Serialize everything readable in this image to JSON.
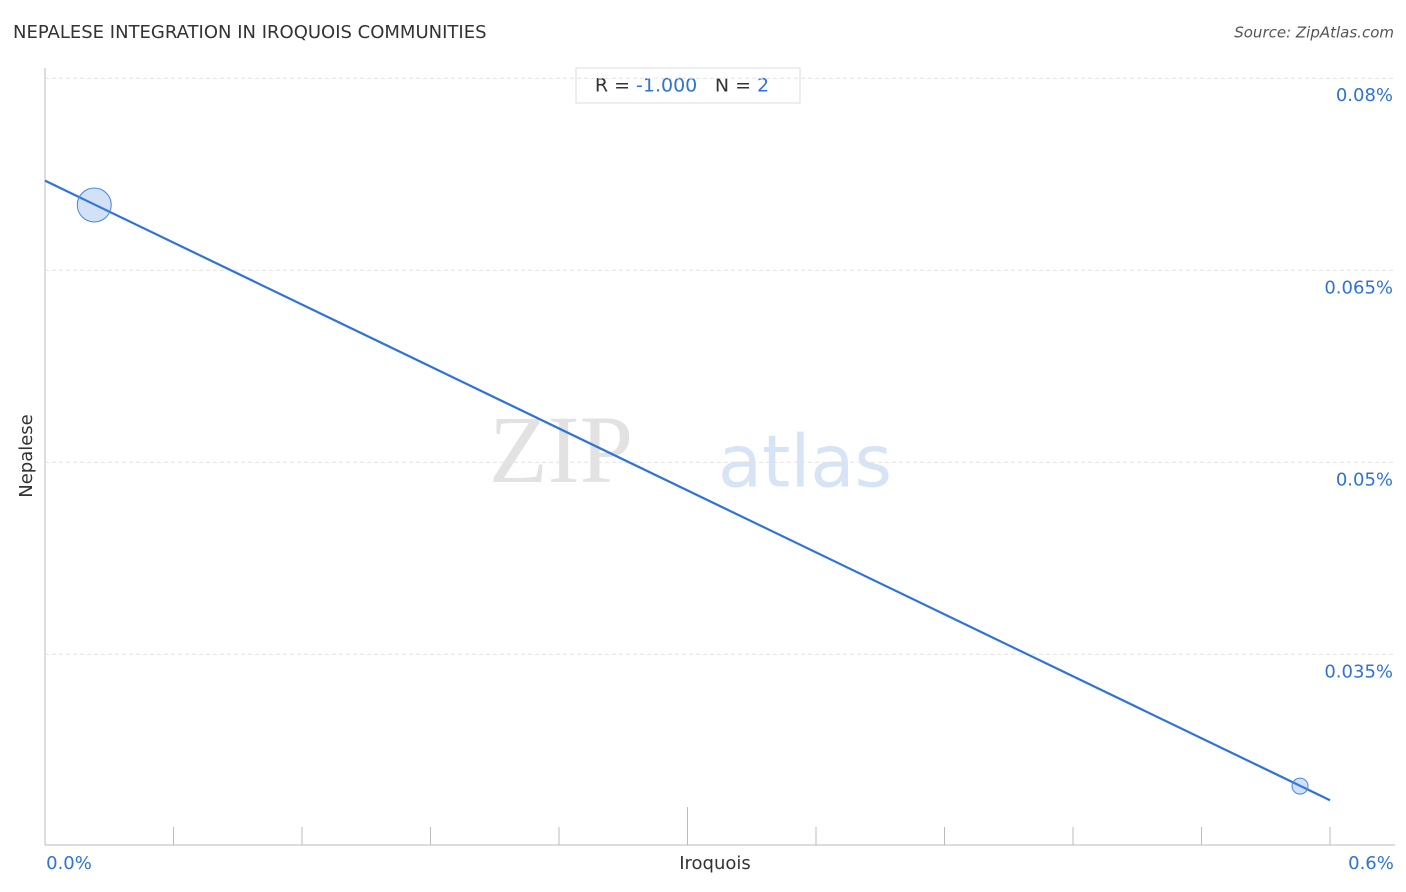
{
  "chart_data": {
    "type": "scatter",
    "title": "NEPALESE INTEGRATION IN IROQUOIS COMMUNITIES",
    "source": "Source: ZipAtlas.com",
    "watermark": [
      "ZIP",
      "atlas"
    ],
    "x_label": "Iroquois",
    "y_label": "Nepalese",
    "stats": [
      {
        "name": "R =",
        "value": -1,
        "label": "-1.000"
      },
      {
        "name": "N =",
        "value": 2
      }
    ],
    "series": [
      {
        "name": "Nepalese",
        "color": "#4a86d8",
        "x": [
          0.023,
          0.586
        ],
        "values": [
          0.0701,
          0.0247
        ],
        "weights": [
          4.5,
          1
        ]
      }
    ],
    "trendline": {
      "color": "#2f73d6",
      "x": [
        0,
        0.6
      ],
      "values": [
        0.072,
        0.0236
      ]
    },
    "xlim": [
      0,
      0.6
    ],
    "xticks": [
      {
        "value": 0,
        "label": "0.0%"
      },
      {
        "value": 0.06,
        "label": null
      },
      {
        "value": 0.12,
        "label": null
      },
      {
        "value": 0.18,
        "label": null
      },
      {
        "value": 0.24,
        "label": null
      },
      {
        "value": 0.3,
        "label": null
      },
      {
        "value": 0.36,
        "label": null
      },
      {
        "value": 0.42,
        "label": null
      },
      {
        "value": 0.48,
        "label": null
      },
      {
        "value": 0.54,
        "label": null
      },
      {
        "value": 0.6,
        "label": "0.6%"
      }
    ],
    "ylim": [
      0.0201,
      0.0808
    ],
    "yticks": [
      {
        "value": 0.035,
        "label": "0.035%"
      },
      {
        "value": 0.05,
        "label": "0.05%"
      },
      {
        "value": 0.065,
        "label": "0.065%"
      },
      {
        "value": 0.08,
        "label": "0.08%"
      }
    ],
    "grid": true
  }
}
